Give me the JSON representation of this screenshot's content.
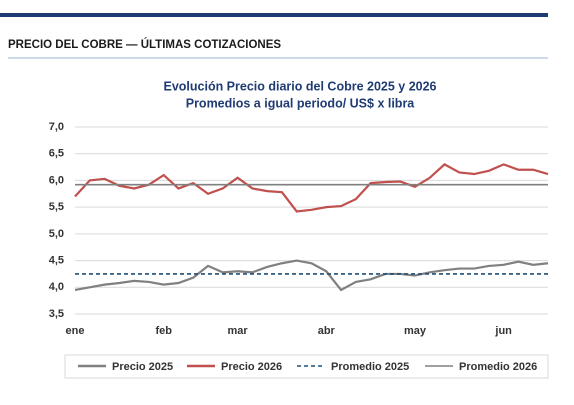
{
  "header": {
    "title": "PRECIO DEL COBRE — ÚLTIMAS COTIZACIONES"
  },
  "chart_data": {
    "type": "line",
    "title": "Evolución Precio diario del Cobre 2025 y 2026",
    "subtitle": "Promedios a igual periodo/ US$ x libra",
    "categories": [
      "ene",
      null,
      null,
      null,
      null,
      null,
      "feb",
      null,
      null,
      null,
      null,
      "mar",
      null,
      null,
      null,
      null,
      null,
      "abr",
      null,
      null,
      null,
      null,
      null,
      "may",
      null,
      null,
      null,
      null,
      null,
      "jun",
      null,
      null,
      null
    ],
    "series": [
      {
        "name": "Precio 2025",
        "color": "#808080",
        "values": [
          3.95,
          4.0,
          4.05,
          4.08,
          4.12,
          4.1,
          4.05,
          4.08,
          4.18,
          4.4,
          4.28,
          4.3,
          4.28,
          4.38,
          4.45,
          4.5,
          4.45,
          4.3,
          3.95,
          4.1,
          4.15,
          4.25,
          4.25,
          4.22,
          4.28,
          4.32,
          4.35,
          4.35,
          4.4,
          4.42,
          4.48,
          4.42,
          4.45
        ]
      },
      {
        "name": "Precio 2026",
        "color": "#c0504d",
        "values": [
          5.7,
          6.0,
          6.03,
          5.9,
          5.85,
          5.92,
          6.1,
          5.85,
          5.95,
          5.75,
          5.85,
          6.05,
          5.85,
          5.8,
          5.78,
          5.42,
          5.45,
          5.5,
          5.52,
          5.65,
          5.95,
          5.97,
          5.98,
          5.88,
          6.05,
          6.3,
          6.15,
          6.12,
          6.18,
          6.3,
          6.2,
          6.2,
          6.12
        ]
      },
      {
        "name": "Promedio 2025",
        "color": "#1f4e79",
        "dashed": true,
        "value": 4.25
      },
      {
        "name": "Promedio 2026",
        "color": "#808080",
        "dashed": false,
        "value": 5.92
      }
    ],
    "ylim": [
      3.5,
      7.0
    ],
    "yticks": [
      {
        "value": 3.5,
        "label": "3,5"
      },
      {
        "value": 4.0,
        "label": "4,0"
      },
      {
        "value": 4.5,
        "label": "4,5"
      },
      {
        "value": 5.0,
        "label": "5,0"
      },
      {
        "value": 5.5,
        "label": "5,5"
      },
      {
        "value": 6.0,
        "label": "6,0"
      },
      {
        "value": 6.5,
        "label": "6,5"
      },
      {
        "value": 7.0,
        "label": "7,0"
      }
    ],
    "grid": true,
    "legend": "bottom"
  }
}
